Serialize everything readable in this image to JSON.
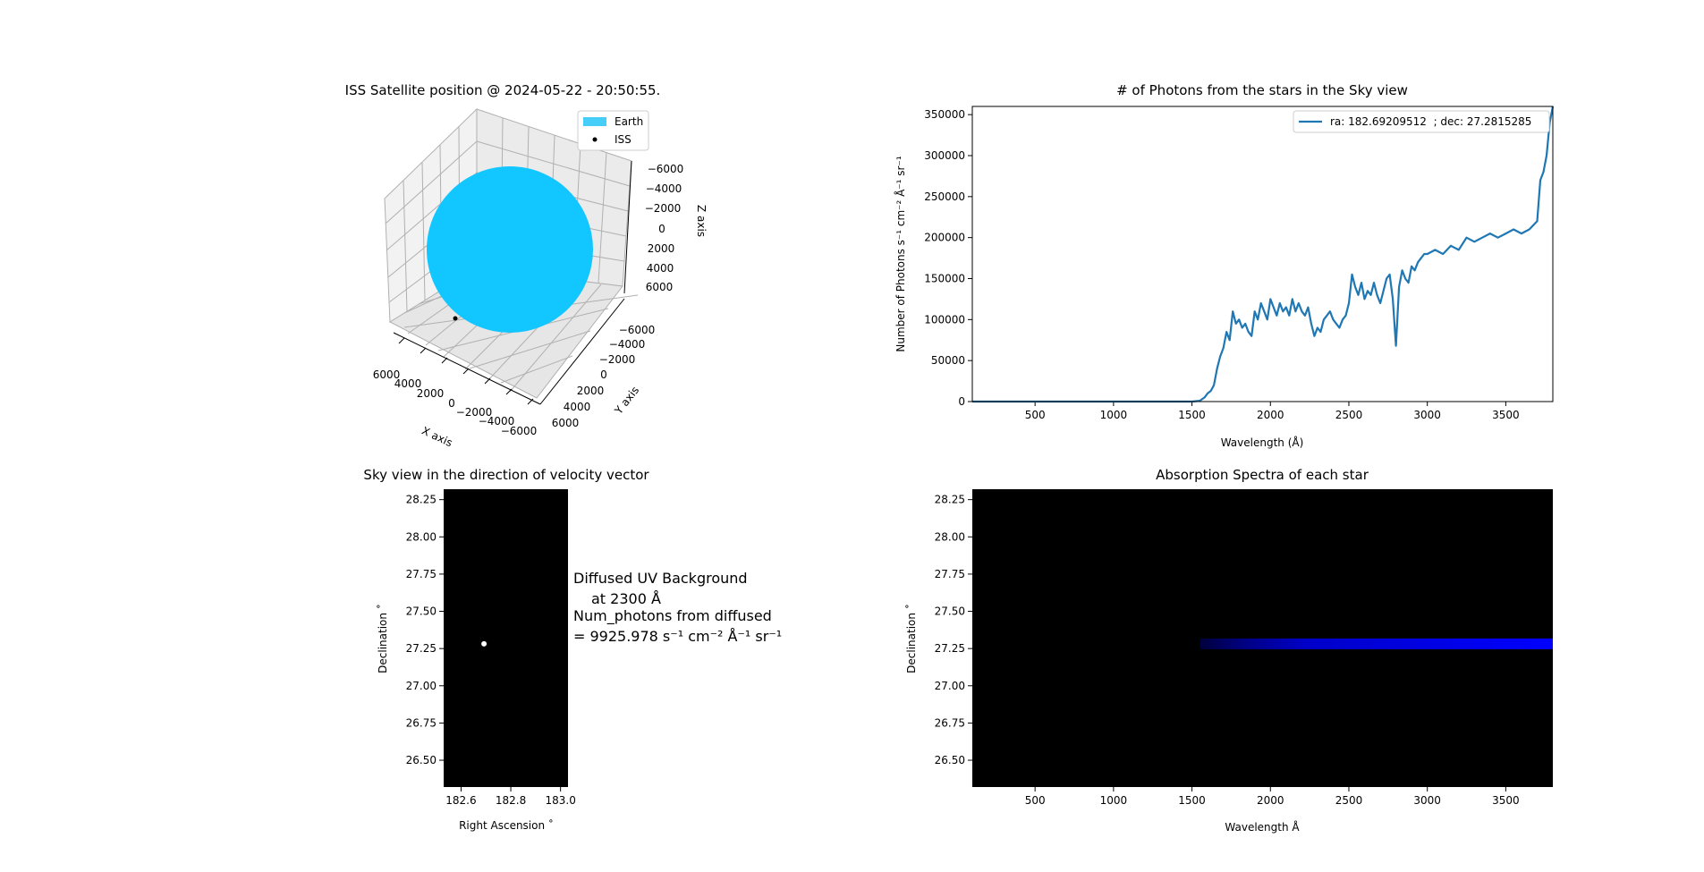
{
  "chart_data": [
    {
      "type": "scatter3d",
      "title": "ISS Satellite position @ 2024-05-22 - 20:50:55.",
      "xlabel": "X axis",
      "ylabel": "Y axis",
      "zlabel": "Z axis",
      "x_ticks": [
        "6000",
        "4000",
        "2000",
        "0",
        "−2000",
        "−4000",
        "−6000"
      ],
      "y_ticks": [
        "−6000",
        "−4000",
        "−2000",
        "0",
        "2000",
        "4000",
        "6000"
      ],
      "z_ticks": [
        "−6000",
        "−4000",
        "−2000",
        "0",
        "2000",
        "4000",
        "6000"
      ],
      "legend": [
        {
          "label": "Earth",
          "color": "#00bfff"
        },
        {
          "label": "ISS",
          "color": "#000000"
        }
      ],
      "legend_placement": "top-right",
      "grid": true
    },
    {
      "type": "line",
      "title": "# of Photons from the stars in the Sky view",
      "xlabel": "Wavelength (Å)",
      "ylabel": "Number of Photons s⁻¹ cm⁻² Å⁻¹ sr⁻¹",
      "xlim": [
        100,
        3800
      ],
      "ylim": [
        0,
        360000
      ],
      "x_ticks": [
        500,
        1000,
        1500,
        2000,
        2500,
        3000,
        3500
      ],
      "y_ticks": [
        0,
        50000,
        100000,
        150000,
        200000,
        250000,
        300000,
        350000
      ],
      "legend_placement": "top-right",
      "color": "#1f77b4",
      "series": [
        {
          "name": "ra: 182.69209512  ; dec: 27.2815285",
          "x": [
            100,
            1400,
            1500,
            1550,
            1580,
            1600,
            1620,
            1640,
            1660,
            1680,
            1700,
            1720,
            1740,
            1760,
            1780,
            1800,
            1820,
            1840,
            1860,
            1880,
            1900,
            1920,
            1940,
            1960,
            1980,
            2000,
            2020,
            2040,
            2060,
            2080,
            2100,
            2120,
            2140,
            2160,
            2180,
            2200,
            2220,
            2240,
            2260,
            2280,
            2300,
            2320,
            2340,
            2360,
            2380,
            2400,
            2420,
            2440,
            2460,
            2480,
            2500,
            2520,
            2540,
            2560,
            2580,
            2600,
            2620,
            2640,
            2660,
            2680,
            2700,
            2720,
            2740,
            2760,
            2780,
            2800,
            2820,
            2840,
            2860,
            2880,
            2900,
            2920,
            2940,
            2960,
            2980,
            3000,
            3050,
            3100,
            3150,
            3200,
            3250,
            3300,
            3350,
            3400,
            3450,
            3500,
            3550,
            3600,
            3650,
            3700,
            3720,
            3740,
            3760,
            3780,
            3800
          ],
          "y": [
            0,
            0,
            0,
            1000,
            5000,
            10000,
            13000,
            20000,
            40000,
            55000,
            65000,
            85000,
            75000,
            110000,
            95000,
            100000,
            90000,
            95000,
            85000,
            80000,
            110000,
            100000,
            120000,
            110000,
            100000,
            125000,
            115000,
            105000,
            120000,
            110000,
            115000,
            105000,
            125000,
            110000,
            120000,
            110000,
            105000,
            115000,
            95000,
            80000,
            90000,
            85000,
            100000,
            105000,
            110000,
            100000,
            95000,
            90000,
            100000,
            105000,
            120000,
            155000,
            140000,
            130000,
            145000,
            125000,
            135000,
            130000,
            145000,
            130000,
            120000,
            135000,
            150000,
            155000,
            125000,
            68000,
            140000,
            160000,
            150000,
            145000,
            165000,
            160000,
            170000,
            175000,
            180000,
            180000,
            185000,
            180000,
            190000,
            185000,
            200000,
            195000,
            200000,
            205000,
            200000,
            205000,
            210000,
            205000,
            210000,
            220000,
            270000,
            280000,
            300000,
            340000,
            360000
          ]
        }
      ]
    },
    {
      "type": "scatter",
      "title": "Sky view in the direction of velocity vector",
      "xlabel": "Right Ascension ˚",
      "ylabel": "Declination ˚",
      "xlim": [
        182.53,
        183.03
      ],
      "ylim": [
        26.32,
        28.32
      ],
      "x_ticks": [
        "182.6",
        "182.8",
        "183.0"
      ],
      "y_ticks": [
        "26.50",
        "26.75",
        "27.00",
        "27.25",
        "27.50",
        "27.75",
        "28.00",
        "28.25"
      ],
      "background": "#000000",
      "points": [
        {
          "ra": 182.69209512,
          "dec": 27.2815285,
          "color": "#ffffff"
        }
      ]
    },
    {
      "type": "heatmap",
      "title": "Absorption Spectra of each star",
      "xlabel": "Wavelength Å",
      "ylabel": "Declination ˚",
      "xlim": [
        100,
        3800
      ],
      "ylim": [
        26.32,
        28.32
      ],
      "x_ticks": [
        500,
        1000,
        1500,
        2000,
        2500,
        3000,
        3500
      ],
      "y_ticks": [
        "26.50",
        "26.75",
        "27.00",
        "27.25",
        "27.50",
        "27.75",
        "28.00",
        "28.25"
      ],
      "background": "#000000",
      "band_dec": 27.2815285,
      "band_start": 1550,
      "band_end": 3800,
      "band_color": "#0000ff"
    }
  ],
  "annotation": {
    "line1": "Diffused UV Background",
    "line2": "at 2300 Å",
    "line3": "Num_photons from diffused",
    "line4": "= 9925.978 s⁻¹ cm⁻² Å⁻¹ sr⁻¹"
  }
}
